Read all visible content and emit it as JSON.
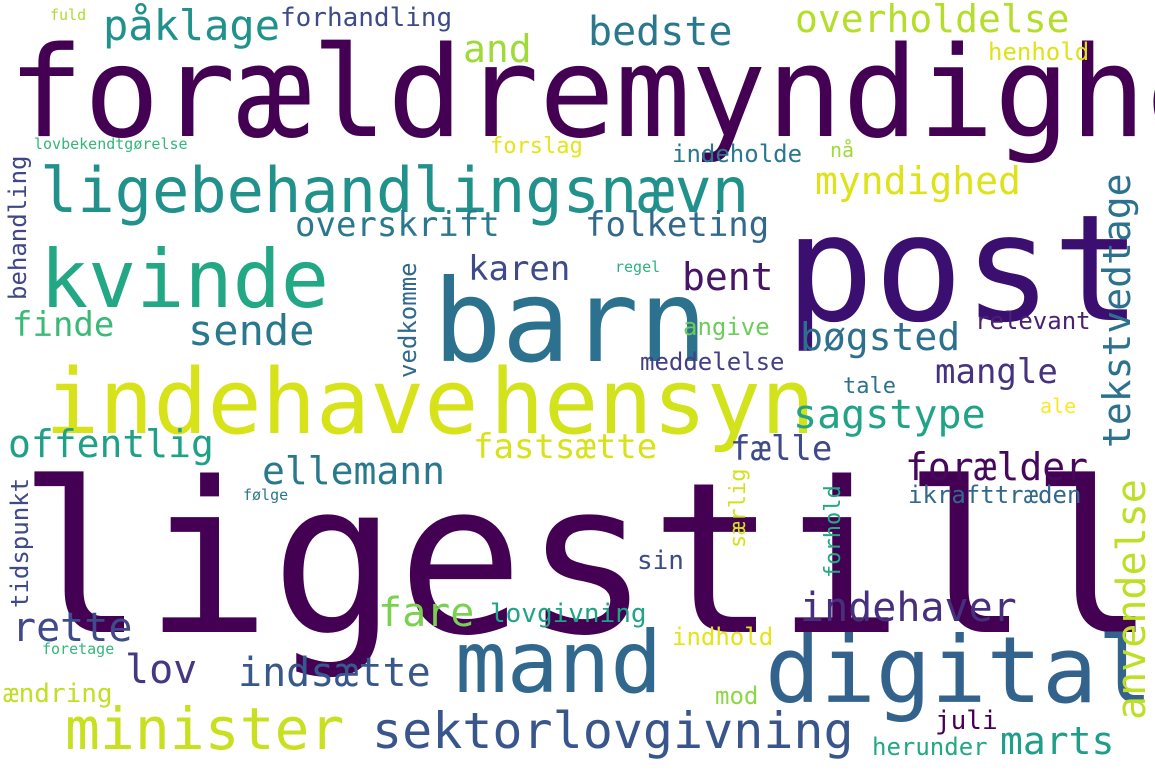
{
  "words": [
    {
      "text": "ligestilling",
      "color": "#440154"
    },
    {
      "text": "forældremyndighed",
      "color": "#440154"
    },
    {
      "text": "post",
      "color": "#3b0f70"
    },
    {
      "text": "barn",
      "color": "#2c728e"
    },
    {
      "text": "indehave",
      "color": "#d8e219"
    },
    {
      "text": "hensyn",
      "color": "#d2e21b"
    },
    {
      "text": "kvinde",
      "color": "#22a884"
    },
    {
      "text": "ligebehandlingsnævn",
      "color": "#21918c"
    },
    {
      "text": "digital",
      "color": "#33638d"
    },
    {
      "text": "mand",
      "color": "#31688e"
    },
    {
      "text": "minister",
      "color": "#c8e020"
    },
    {
      "text": "sektorlovgivning",
      "color": "#39568c"
    },
    {
      "text": "påklage",
      "color": "#21918c"
    },
    {
      "text": "forhandling",
      "color": "#3e4a89"
    },
    {
      "text": "bedste",
      "color": "#2a788e"
    },
    {
      "text": "and",
      "color": "#a0da39"
    },
    {
      "text": "overholdelse",
      "color": "#b5de2b"
    },
    {
      "text": "henhold",
      "color": "#dde318"
    },
    {
      "text": "fuld",
      "color": "#addc30"
    },
    {
      "text": "lovbekendtgørelse",
      "color": "#34b679"
    },
    {
      "text": "forslag",
      "color": "#e5e419"
    },
    {
      "text": "indeholde",
      "color": "#2a788e"
    },
    {
      "text": "nå",
      "color": "#a0da39"
    },
    {
      "text": "myndighed",
      "color": "#dde318"
    },
    {
      "text": "overskrift",
      "color": "#2a788e"
    },
    {
      "text": "folketing",
      "color": "#31688e"
    },
    {
      "text": "tekstvedtage",
      "color": "#2c728e"
    },
    {
      "text": "behandling",
      "color": "#404688"
    },
    {
      "text": "karen",
      "color": "#3e4a89"
    },
    {
      "text": "bent",
      "color": "#481467"
    },
    {
      "text": "regel",
      "color": "#2db27d"
    },
    {
      "text": "finde",
      "color": "#3aba76"
    },
    {
      "text": "sende",
      "color": "#2a788e"
    },
    {
      "text": "angive",
      "color": "#6ccd5a"
    },
    {
      "text": "relevant",
      "color": "#482173"
    },
    {
      "text": "bøgsted",
      "color": "#2d708e"
    },
    {
      "text": "vedkomme",
      "color": "#31688e"
    },
    {
      "text": "meddelelse",
      "color": "#433e85"
    },
    {
      "text": "mangle",
      "color": "#46327e"
    },
    {
      "text": "tale",
      "color": "#2c728e"
    },
    {
      "text": "sagstype",
      "color": "#20a386"
    },
    {
      "text": "ale",
      "color": "#fde725"
    },
    {
      "text": "offentlig",
      "color": "#1fa188"
    },
    {
      "text": "fastsætte",
      "color": "#d8e219"
    },
    {
      "text": "fælle",
      "color": "#3e4a89"
    },
    {
      "text": "ellemann",
      "color": "#2a788e"
    },
    {
      "text": "forælder",
      "color": "#46085c"
    },
    {
      "text": "ikrafttræden",
      "color": "#31688e"
    },
    {
      "text": "anvendelse",
      "color": "#bddf26"
    },
    {
      "text": "tidspunkt",
      "color": "#3e4a89"
    },
    {
      "text": "følge",
      "color": "#2a788e"
    },
    {
      "text": "særlig",
      "color": "#d2e21b"
    },
    {
      "text": "forhold",
      "color": "#22a884"
    },
    {
      "text": "sin",
      "color": "#3e4a89"
    },
    {
      "text": "rette",
      "color": "#3e4a89"
    },
    {
      "text": "fare",
      "color": "#7ad151"
    },
    {
      "text": "lovgivning",
      "color": "#20a386"
    },
    {
      "text": "indehaver",
      "color": "#46307e"
    },
    {
      "text": "indhold",
      "color": "#e5e419"
    },
    {
      "text": "foretage",
      "color": "#35b779"
    },
    {
      "text": "lov",
      "color": "#453781"
    },
    {
      "text": "indsætte",
      "color": "#38588c"
    },
    {
      "text": "ændring",
      "color": "#c0df25"
    },
    {
      "text": "mod",
      "color": "#8fd744"
    },
    {
      "text": "juli",
      "color": "#440154"
    },
    {
      "text": "herunder",
      "color": "#22a884"
    },
    {
      "text": "marts",
      "color": "#1f9e89"
    }
  ]
}
